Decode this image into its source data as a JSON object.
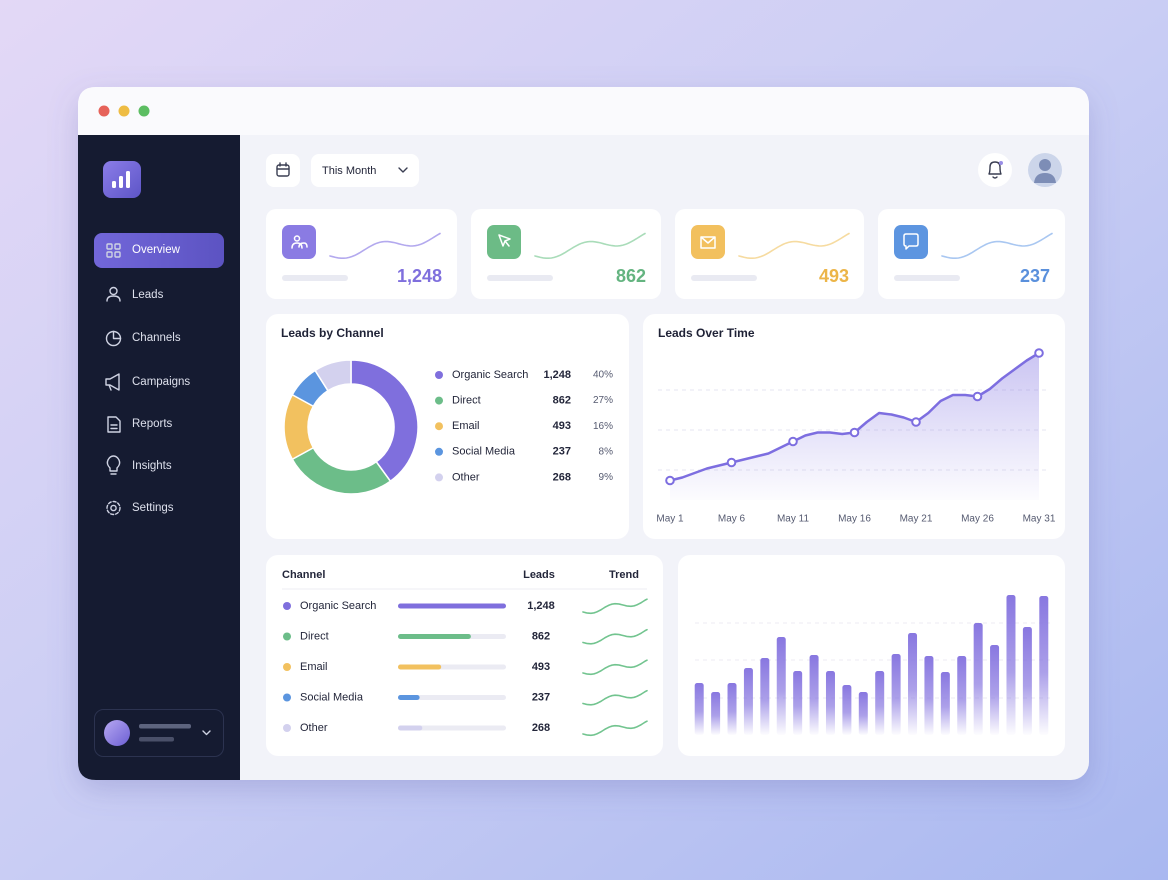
{
  "window": {
    "nav": [
      "Overview",
      "Leads",
      "Channels",
      "Campaigns",
      "Reports",
      "Insights",
      "Settings"
    ],
    "period": "This Month"
  },
  "kpis": [
    "1,248",
    "862",
    "493",
    "237"
  ],
  "channel_table": {
    "columns": [
      "Channel",
      "Leads",
      "Trend"
    ],
    "rows": [
      [
        "Organic Search",
        "1,248"
      ],
      [
        "Direct",
        "862"
      ],
      [
        "Email",
        "493"
      ],
      [
        "Social Media",
        "237"
      ],
      [
        "Other",
        "268"
      ]
    ]
  },
  "chart_data": [
    {
      "type": "donut",
      "title": "Leads by Channel",
      "categories": [
        "Organic Search",
        "Direct",
        "Email",
        "Social Media",
        "Other"
      ],
      "counts": [
        "1,248",
        "862",
        "493",
        "237",
        "268"
      ],
      "values": [
        40,
        27,
        16,
        8,
        9
      ],
      "value_labels": [
        "40%",
        "27%",
        "16%",
        "8%",
        "9%"
      ],
      "colors": [
        "#7f6fdd",
        "#6cbd89",
        "#f2c15f",
        "#5b95df",
        "#d3d1ee"
      ]
    },
    {
      "type": "area",
      "title": "Leads Over Time",
      "categories": [
        "May 1",
        null,
        null,
        null,
        null,
        "May 6",
        null,
        null,
        null,
        null,
        "May 11",
        null,
        null,
        null,
        null,
        "May 16",
        null,
        null,
        null,
        null,
        "May 21",
        null,
        null,
        null,
        null,
        "May 26",
        null,
        null,
        null,
        null,
        "May 31"
      ],
      "values": [
        13,
        15,
        18,
        21,
        23,
        25,
        27,
        29,
        31,
        35,
        39,
        43,
        45,
        45,
        44,
        45,
        52,
        58,
        57,
        55,
        52,
        58,
        66,
        70,
        70,
        69,
        74,
        81,
        87,
        93,
        98
      ],
      "ylim": [
        0,
        100
      ],
      "color": "#7d6ee0"
    },
    {
      "type": "bar",
      "categories": [
        null,
        null,
        null,
        null,
        null,
        null,
        null,
        null,
        null,
        null,
        null,
        null,
        null,
        null,
        null,
        null,
        null,
        null,
        null,
        null,
        null,
        null
      ],
      "values": [
        52,
        43,
        52,
        67,
        77,
        98,
        64,
        80,
        64,
        50,
        43,
        64,
        81,
        102,
        79,
        63,
        79,
        112,
        90,
        140,
        108,
        139
      ],
      "ylim": [
        0,
        150
      ],
      "color": "#8877e0"
    }
  ]
}
